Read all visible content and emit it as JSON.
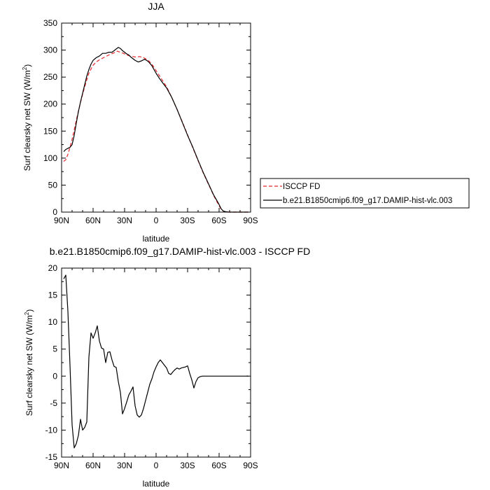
{
  "chart_data": [
    {
      "type": "line",
      "title": "JJA",
      "xlabel": "latitude",
      "ylabel": "Surf clearsky net SW (W/m",
      "ylabel_sup": "2",
      "ylabel_close": ")",
      "xlim": [
        90,
        -90
      ],
      "ylim": [
        0,
        350
      ],
      "x_ticks": [
        90,
        60,
        30,
        0,
        -30,
        -60,
        -90
      ],
      "x_tick_labels": [
        "90N",
        "60N",
        "30N",
        "0",
        "30S",
        "60S",
        "90S"
      ],
      "y_ticks": [
        0,
        50,
        100,
        150,
        200,
        250,
        300,
        350
      ],
      "y_tick_labels": [
        "0",
        "50",
        "100",
        "150",
        "200",
        "250",
        "300",
        "350"
      ],
      "legend_position": "right",
      "series": [
        {
          "name": "ISCCP FD",
          "color": "#e8262b",
          "dash": true,
          "x": [
            88,
            86,
            84,
            82,
            80,
            78,
            76,
            74,
            72,
            70,
            68,
            66,
            64,
            62,
            60,
            57,
            54,
            50,
            45,
            40,
            37,
            34,
            31,
            28,
            25,
            22,
            19,
            16,
            13,
            10,
            7,
            4,
            2,
            0,
            -3,
            -6,
            -10,
            -15,
            -20,
            -25,
            -30,
            -35,
            -40,
            -45,
            -50,
            -55,
            -58,
            -60,
            -62,
            -64,
            -66,
            -68,
            -70,
            -75,
            -80,
            -85,
            -88
          ],
          "y": [
            94,
            97,
            107,
            120,
            135,
            152,
            170,
            187,
            203,
            218,
            232,
            245,
            257,
            265,
            272,
            278,
            282,
            286,
            291,
            295,
            298,
            296,
            294,
            291,
            289,
            288,
            287,
            288,
            287,
            284,
            280,
            274,
            268,
            262,
            253,
            244,
            232,
            212,
            190,
            167,
            143,
            119,
            95,
            72,
            51,
            30,
            19,
            12,
            5,
            2,
            0.5,
            0,
            0,
            0,
            0,
            0,
            0
          ]
        },
        {
          "name": "b.e21.B1850cmip6.f09_g17.DAMIP-hist-vlc.003",
          "color": "#000000",
          "dash": false,
          "x": [
            88,
            86,
            84,
            82,
            80,
            78,
            76,
            74,
            72,
            70,
            68,
            66,
            64,
            62,
            60,
            57,
            54,
            51,
            48,
            45,
            42,
            40,
            38,
            36,
            34,
            32,
            30,
            28,
            26,
            24,
            22,
            20,
            17,
            14,
            11,
            9,
            7,
            4,
            2,
            0,
            -3,
            -6,
            -10,
            -15,
            -20,
            -25,
            -30,
            -35,
            -40,
            -45,
            -50,
            -55,
            -58,
            -60,
            -62,
            -64,
            -66,
            -68,
            -70,
            -75,
            -80,
            -85,
            -88
          ],
          "y": [
            112,
            116,
            118,
            120,
            125,
            142,
            165,
            186,
            204,
            220,
            236,
            252,
            264,
            274,
            281,
            286,
            289,
            294,
            294,
            296,
            296,
            299,
            302,
            305,
            303,
            299,
            296,
            293,
            291,
            287,
            284,
            281,
            278,
            280,
            283,
            281,
            278,
            271,
            264,
            257,
            248,
            240,
            230,
            212,
            190,
            166,
            142,
            120,
            96,
            73,
            52,
            31,
            21,
            14,
            6,
            2,
            0.8,
            0.3,
            0,
            0,
            0,
            0,
            0
          ]
        }
      ]
    },
    {
      "type": "line",
      "title": "b.e21.B1850cmip6.f09_g17.DAMIP-hist-vlc.003 - ISCCP FD",
      "xlabel": "latitude",
      "ylabel": "Surf clearsky net SW (W/m",
      "ylabel_sup": "2",
      "ylabel_close": ")",
      "xlim": [
        90,
        -90
      ],
      "ylim": [
        -15,
        20
      ],
      "x_ticks": [
        90,
        60,
        30,
        0,
        -30,
        -60,
        -90
      ],
      "x_tick_labels": [
        "90N",
        "60N",
        "30N",
        "0",
        "30S",
        "60S",
        "90S"
      ],
      "y_ticks": [
        -15,
        -10,
        -5,
        0,
        5,
        10,
        15,
        20
      ],
      "y_tick_labels": [
        "-15",
        "-10",
        "-5",
        "0",
        "5",
        "10",
        "15",
        "20"
      ],
      "series": [
        {
          "color": "#000000",
          "x": [
            88,
            86,
            84,
            82,
            80,
            78,
            76,
            74,
            72,
            70,
            68,
            66,
            64,
            62,
            60,
            58,
            56,
            54,
            52,
            50,
            48,
            46,
            44,
            42,
            40,
            38,
            36,
            34,
            32,
            30,
            28,
            26,
            24,
            22,
            20,
            18,
            16,
            14,
            12,
            10,
            8,
            6,
            4,
            2,
            0,
            -2,
            -4,
            -6,
            -8,
            -10,
            -12,
            -14,
            -16,
            -18,
            -20,
            -22,
            -24,
            -26,
            -28,
            -30,
            -32,
            -34,
            -36,
            -38,
            -40,
            -42,
            -44,
            -46,
            -48,
            -50,
            -52,
            -54,
            -56,
            -58,
            -60,
            -62,
            -64,
            -66,
            -68,
            -70,
            -72,
            -75,
            -80,
            -85,
            -88
          ],
          "y": [
            18,
            18.7,
            12,
            2,
            -9,
            -13.3,
            -12.5,
            -11,
            -8,
            -10,
            -9.5,
            -8.5,
            3.5,
            8,
            7,
            8,
            9.3,
            6.5,
            5.2,
            5,
            2.5,
            4.4,
            4.5,
            3,
            1.8,
            1.6,
            -1,
            -3,
            -7,
            -6,
            -4.8,
            -3.5,
            -2.8,
            -2,
            -5.5,
            -7.2,
            -7.6,
            -7.2,
            -6,
            -4.5,
            -3,
            -1.5,
            -0.5,
            0.8,
            1.7,
            2.5,
            3,
            2.5,
            2,
            1.5,
            0.5,
            0.3,
            0.8,
            1.2,
            1.5,
            1.3,
            1.5,
            1.6,
            1.7,
            1.9,
            0.5,
            -0.7,
            -2.2,
            -1,
            -0.3,
            -0.1,
            0,
            0,
            0,
            0,
            0,
            0,
            0,
            0,
            0,
            0,
            0,
            0,
            0,
            0,
            0,
            0,
            0,
            0,
            0
          ]
        }
      ]
    }
  ]
}
